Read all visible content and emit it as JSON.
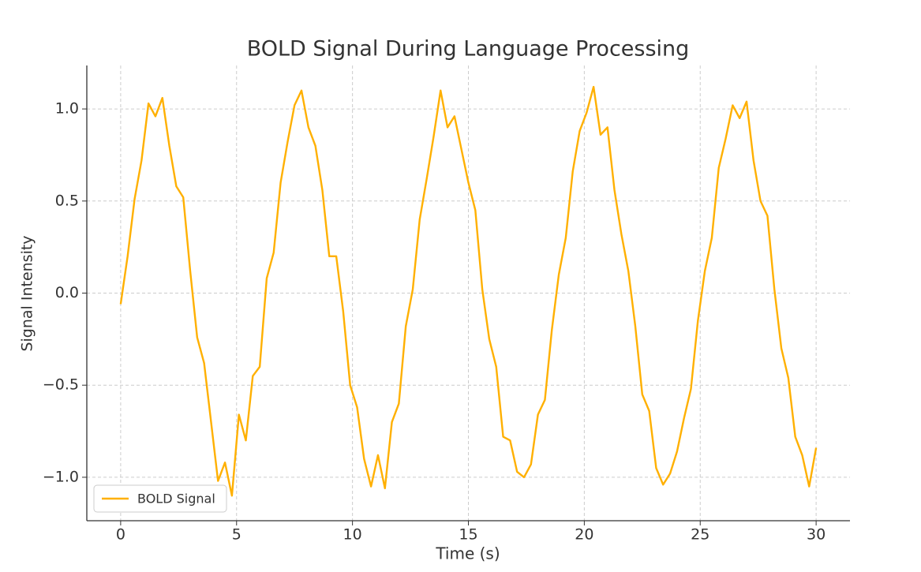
{
  "chart_data": {
    "type": "line",
    "title": "BOLD Signal During Language Processing",
    "x_label": "Time (s)",
    "y_label": "Signal Intensity",
    "x": [
      0,
      0.3,
      0.6,
      0.9,
      1.2,
      1.5,
      1.8,
      2.1,
      2.4,
      2.7,
      3,
      3.3,
      3.6,
      3.9,
      4.2,
      4.5,
      4.8,
      5.1,
      5.4,
      5.7,
      6,
      6.3,
      6.6,
      6.9,
      7.2,
      7.5,
      7.8,
      8.1,
      8.4,
      8.7,
      9,
      9.3,
      9.6,
      9.9,
      10.2,
      10.5,
      10.8,
      11.1,
      11.4,
      11.7,
      12,
      12.3,
      12.6,
      12.9,
      13.2,
      13.5,
      13.8,
      14.1,
      14.4,
      14.7,
      15,
      15.3,
      15.6,
      15.9,
      16.2,
      16.5,
      16.8,
      17.1,
      17.4,
      17.7,
      18,
      18.3,
      18.6,
      18.9,
      19.2,
      19.5,
      19.8,
      20.1,
      20.4,
      20.7,
      21,
      21.3,
      21.6,
      21.9,
      22.2,
      22.5,
      22.8,
      23.1,
      23.4,
      23.7,
      24,
      24.3,
      24.6,
      24.9,
      25.2,
      25.5,
      25.8,
      26.1,
      26.4,
      26.7,
      27,
      27.3,
      27.6,
      27.9,
      28.2,
      28.5,
      28.8,
      29.1,
      29.4,
      29.7,
      30
    ],
    "series": [
      {
        "name": "BOLD Signal",
        "color": "#ffb000",
        "values": [
          -0.06,
          0.2,
          0.51,
          0.72,
          1.03,
          0.96,
          1.06,
          0.8,
          0.58,
          0.52,
          0.12,
          -0.24,
          -0.38,
          -0.7,
          -1.02,
          -0.92,
          -1.1,
          -0.66,
          -0.8,
          -0.45,
          -0.4,
          0.08,
          0.22,
          0.6,
          0.82,
          1.02,
          1.1,
          0.9,
          0.8,
          0.56,
          0.2,
          0.2,
          -0.1,
          -0.5,
          -0.62,
          -0.9,
          -1.05,
          -0.88,
          -1.06,
          -0.7,
          -0.6,
          -0.18,
          0.02,
          0.4,
          0.62,
          0.85,
          1.1,
          0.9,
          0.96,
          0.78,
          0.6,
          0.45,
          0.02,
          -0.25,
          -0.4,
          -0.78,
          -0.8,
          -0.97,
          -1.0,
          -0.93,
          -0.66,
          -0.58,
          -0.2,
          0.1,
          0.3,
          0.66,
          0.88,
          0.98,
          1.12,
          0.86,
          0.9,
          0.56,
          0.32,
          0.12,
          -0.18,
          -0.55,
          -0.64,
          -0.95,
          -1.04,
          -0.98,
          -0.86,
          -0.68,
          -0.52,
          -0.15,
          0.12,
          0.3,
          0.68,
          0.84,
          1.02,
          0.95,
          1.04,
          0.72,
          0.5,
          0.42,
          0.02,
          -0.3,
          -0.46,
          -0.78,
          -0.88,
          -1.05,
          -0.84
        ]
      }
    ],
    "xlim": [
      -1.46,
      31.46
    ],
    "xticks": [
      0,
      5,
      10,
      15,
      20,
      25,
      30
    ],
    "ylim": [
      -1.236,
      1.236
    ],
    "yticks": [
      {
        "value": -1.0,
        "label": "−1.0"
      },
      {
        "value": -0.5,
        "label": "−0.5"
      },
      {
        "value": 0.0,
        "label": "0.0"
      },
      0.5,
      {
        "value": 1.0,
        "label": "1.0"
      }
    ],
    "grid": true,
    "legend": "lower-left"
  }
}
